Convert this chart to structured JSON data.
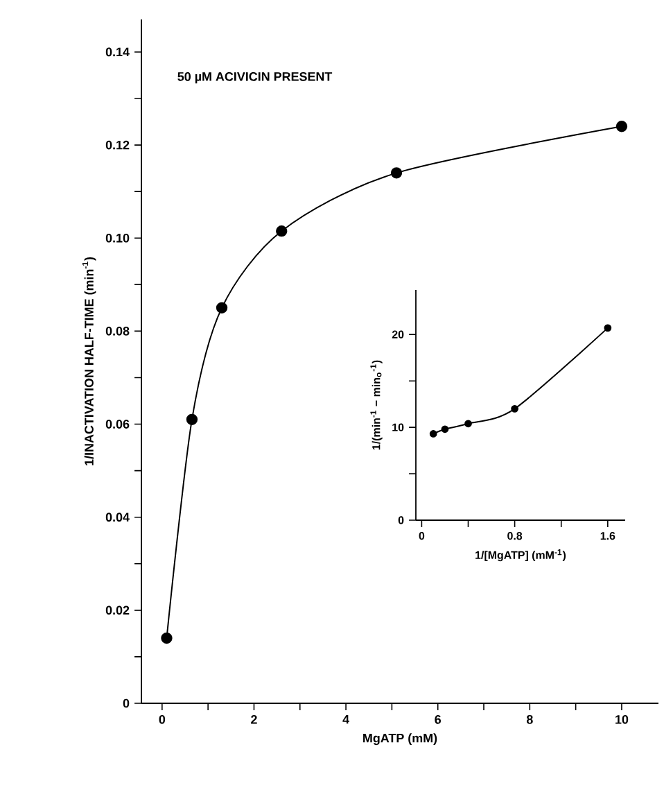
{
  "chart_data": [
    {
      "type": "line",
      "xlabel": "MgATP (mM)",
      "ylabel": "1/INACTIVATION HALF-TIME (min$^{-1}$)",
      "annotations": [
        "50 µM ACIVICIN PRESENT"
      ],
      "x": [
        0.1,
        0.65,
        1.3,
        2.6,
        5.1,
        10.0
      ],
      "series": [
        {
          "color": "#000000",
          "values": [
            0.014,
            0.061,
            0.085,
            0.1015,
            0.114,
            0.124
          ]
        }
      ],
      "marker": "circle",
      "line_style": "solid",
      "xlim": [
        -0.45,
        10.8
      ],
      "ylim": [
        0,
        0.147
      ],
      "xticks": [
        0,
        {
          "value": 1,
          "label": null
        },
        2,
        {
          "value": 3,
          "label": null
        },
        4,
        {
          "value": 5,
          "label": null
        },
        6,
        {
          "value": 7,
          "label": null
        },
        8,
        {
          "value": 9,
          "label": null
        },
        10
      ],
      "yticks": [
        0,
        {
          "value": 0.01,
          "label": null
        },
        0.02,
        {
          "value": 0.03,
          "label": null
        },
        0.04,
        {
          "value": 0.05,
          "label": null
        },
        0.06,
        {
          "value": 0.07,
          "label": null
        },
        0.08,
        {
          "value": 0.09,
          "label": null
        },
        {
          "value": 0.1,
          "label": "0.10"
        },
        {
          "value": 0.11,
          "label": null
        },
        0.12,
        {
          "value": 0.13,
          "label": null
        },
        0.14
      ]
    },
    {
      "type": "line",
      "xlabel": "1/[MgATP] (mM$^{-1}$)",
      "ylabel": "1/(min$^{-1}$ − min$_{o}$$^{-1}$)",
      "x": [
        0.1,
        0.2,
        0.4,
        0.8,
        1.6
      ],
      "series": [
        {
          "color": "#000000",
          "values": [
            9.3,
            9.8,
            10.4,
            12.0,
            20.7
          ]
        }
      ],
      "marker": "circle",
      "line_style": "solid",
      "xlim": [
        -0.05,
        1.75
      ],
      "ylim": [
        0,
        24.8
      ],
      "xticks": [
        0,
        {
          "value": 0.4,
          "label": null
        },
        0.8,
        {
          "value": 1.2,
          "label": null
        },
        1.6
      ],
      "yticks": [
        0,
        {
          "value": 5,
          "label": null
        },
        10,
        {
          "value": 15,
          "label": null
        },
        20
      ]
    }
  ]
}
